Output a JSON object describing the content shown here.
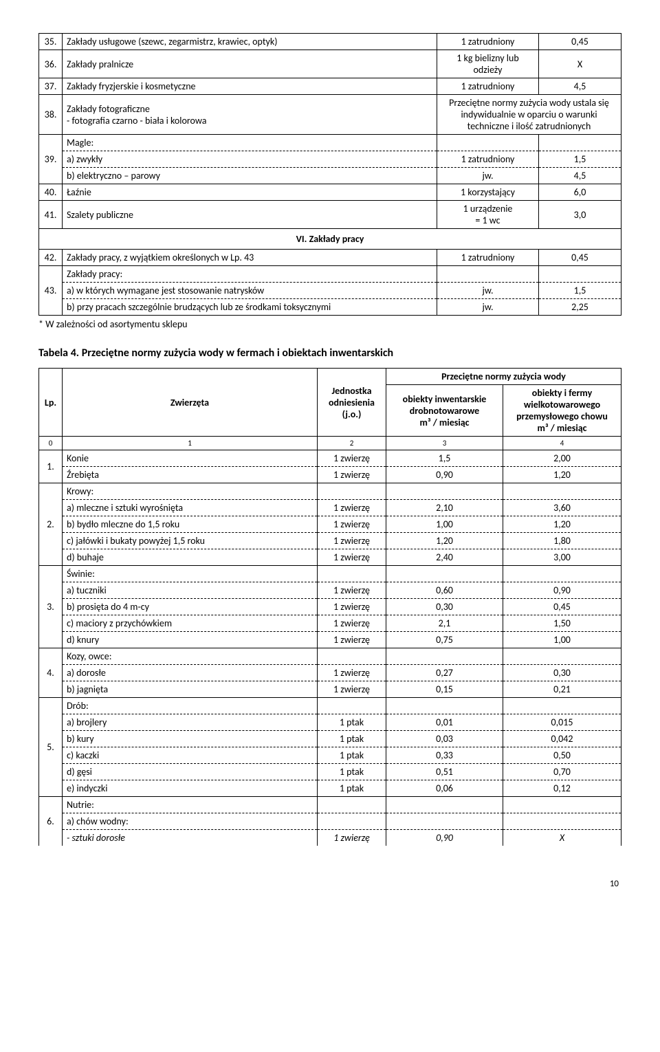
{
  "table1": {
    "rows": {
      "r35": {
        "n": "35.",
        "label": "Zakłady usługowe (szewc, zegarmistrz, krawiec, optyk)",
        "unit": "1 zatrudniony",
        "val": "0,45"
      },
      "r36": {
        "n": "36.",
        "label": "Zakłady pralnicze",
        "unit": "1 kg bielizny lub odzieży",
        "val": "X"
      },
      "r37": {
        "n": "37.",
        "label": "Zakłady fryzjerskie i kosmetyczne",
        "unit": "1 zatrudniony",
        "val": "4,5"
      },
      "r38": {
        "n": "38.",
        "label": "Zakłady fotograficzne\n- fotografia czarno - biała i kolorowa",
        "merged": "Przeciętne normy zużycia wody ustala się indywidualnie w oparciu o warunki techniczne i ilość zatrudnionych"
      },
      "r39": {
        "n": "39.",
        "a": "Magle:",
        "b": "a) zwykły",
        "b_unit": "1 zatrudniony",
        "b_val": "1,5",
        "c": "b) elektryczno – parowy",
        "c_unit": "jw.",
        "c_val": "4,5"
      },
      "r40": {
        "n": "40.",
        "label": "Łaźnie",
        "unit": "1 korzystający",
        "val": "6,0"
      },
      "r41": {
        "n": "41.",
        "label": "Szalety publiczne",
        "unit": "1 urządzenie\n= 1 wc",
        "val": "3,0"
      },
      "section": "VI. Zakłady pracy",
      "r42": {
        "n": "42.",
        "label": "Zakłady pracy, z wyjątkiem określonych w Lp. 43",
        "unit": "1 zatrudniony",
        "val": "0,45"
      },
      "r43": {
        "n": "43.",
        "a": "Zakłady pracy:",
        "b": "a) w których wymagane jest stosowanie natrysków",
        "b_unit": "jw.",
        "b_val": "1,5",
        "c": "b) przy pracach szczególnie brudzących lub ze środkami toksycznymi",
        "c_unit": "jw.",
        "c_val": "2,25"
      }
    },
    "note": "* W zależności od asortymentu sklepu"
  },
  "table2": {
    "title": "Tabela 4. Przeciętne normy zużycia wody w fermach i obiektach inwentarskich",
    "headers": {
      "lp": "Lp.",
      "animals": "Zwierzęta",
      "unit": "Jednostka odniesienia (j.o.)",
      "group": "Przeciętne normy zużycia wody",
      "col3": "obiekty inwentarskie drobnotowarowe",
      "col3_sub": "m³ / miesiąc",
      "col4": "obiekty i fermy wielkotowarowego przemysłowego chowu",
      "col4_sub": "m³ / miesiąc",
      "idx": {
        "c0": "0",
        "c1": "1",
        "c2": "2",
        "c3": "3",
        "c4": "4"
      }
    },
    "rows": {
      "r1": {
        "n": "1.",
        "a": {
          "label": "Konie",
          "unit": "1 zwierzę",
          "v1": "1,5",
          "v2": "2,00"
        },
        "b": {
          "label": "Źrebięta",
          "unit": "1 zwierzę",
          "v1": "0,90",
          "v2": "1,20"
        }
      },
      "r2": {
        "n": "2.",
        "head": "Krowy:",
        "a": {
          "label": "a) mleczne i sztuki wyrośnięta",
          "unit": "1 zwierzę",
          "v1": "2,10",
          "v2": "3,60"
        },
        "b": {
          "label": "b) bydło mleczne do 1,5 roku",
          "unit": "1 zwierzę",
          "v1": "1,00",
          "v2": "1,20"
        },
        "c": {
          "label": "c) jałówki i bukaty powyżej 1,5 roku",
          "unit": "1 zwierzę",
          "v1": "1,20",
          "v2": "1,80"
        },
        "d": {
          "label": "d) buhaje",
          "unit": "1 zwierzę",
          "v1": "2,40",
          "v2": "3,00"
        }
      },
      "r3": {
        "n": "3.",
        "head": "Świnie:",
        "a": {
          "label": "a) tuczniki",
          "unit": "1 zwierzę",
          "v1": "0,60",
          "v2": "0,90"
        },
        "b": {
          "label": "b) prosięta do 4 m-cy",
          "unit": "1 zwierzę",
          "v1": "0,30",
          "v2": "0,45"
        },
        "c": {
          "label": "c) maciory z przychówkiem",
          "unit": "1 zwierzę",
          "v1": "2,1",
          "v2": "1,50"
        },
        "d": {
          "label": "d) knury",
          "unit": "1 zwierzę",
          "v1": "0,75",
          "v2": "1,00"
        }
      },
      "r4": {
        "n": "4.",
        "head": "Kozy, owce:",
        "a": {
          "label": "a) dorosłe",
          "unit": "1 zwierzę",
          "v1": "0,27",
          "v2": "0,30"
        },
        "b": {
          "label": "b) jagnięta",
          "unit": "1 zwierzę",
          "v1": "0,15",
          "v2": "0,21"
        }
      },
      "r5": {
        "n": "5.",
        "head": "Drób:",
        "a": {
          "label": "a) brojlery",
          "unit": "1 ptak",
          "v1": "0,01",
          "v2": "0,015"
        },
        "b": {
          "label": "b) kury",
          "unit": "1 ptak",
          "v1": "0,03",
          "v2": "0,042"
        },
        "c": {
          "label": "c) kaczki",
          "unit": "1 ptak",
          "v1": "0,33",
          "v2": "0,50"
        },
        "d": {
          "label": "d) gęsi",
          "unit": "1 ptak",
          "v1": "0,51",
          "v2": "0,70"
        },
        "e": {
          "label": "e) indyczki",
          "unit": "1 ptak",
          "v1": "0,06",
          "v2": "0,12"
        }
      },
      "r6": {
        "n": "6.",
        "head": "Nutrie:",
        "sub": "a) chów wodny:",
        "a": {
          "label": "- sztuki dorosłe",
          "label_italic": true,
          "unit": "1 zwierzę",
          "unit_italic": true,
          "v1": "0,90",
          "v1_italic": true,
          "v2": "X",
          "v2_italic": true
        }
      }
    }
  },
  "page_number": "10"
}
